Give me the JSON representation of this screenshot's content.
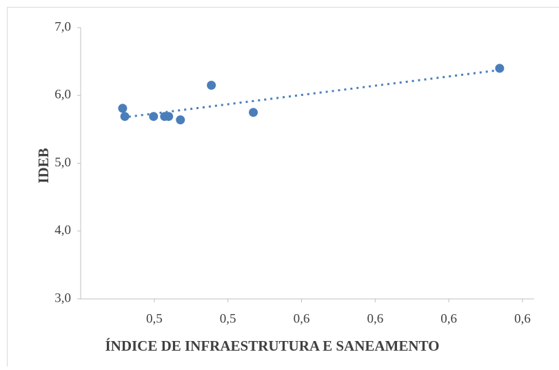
{
  "chart_data": {
    "type": "scatter",
    "x_label": "ÍNDICE DE INFRAESTRUTURA E SANEAMENTO",
    "y_label": "IDEB",
    "color": "#4a7ebb",
    "trendline": true,
    "x": [
      0.5114,
      0.512,
      0.5198,
      0.5228,
      0.5239,
      0.5271,
      0.5355,
      0.5469,
      0.6138
    ],
    "values": [
      5.81,
      5.69,
      5.69,
      5.69,
      5.69,
      5.64,
      6.15,
      5.75,
      6.4
    ],
    "xlim": [
      0.5,
      0.62
    ],
    "xticks": [
      {
        "value": 0.52,
        "label": "0,5"
      },
      {
        "value": 0.54,
        "label": "0,5"
      },
      {
        "value": 0.56,
        "label": "0,6"
      },
      {
        "value": 0.58,
        "label": "0,6"
      },
      {
        "value": 0.6,
        "label": "0,6"
      },
      {
        "value": 0.62,
        "label": "0,6"
      }
    ],
    "ylim": [
      3,
      7
    ],
    "yticks": [
      {
        "value": 3,
        "label": "3,0"
      },
      {
        "value": 4,
        "label": "4,0"
      },
      {
        "value": 5,
        "label": "5,0"
      },
      {
        "value": 6,
        "label": "6,0"
      },
      {
        "value": 7,
        "label": "7,0"
      }
    ]
  }
}
